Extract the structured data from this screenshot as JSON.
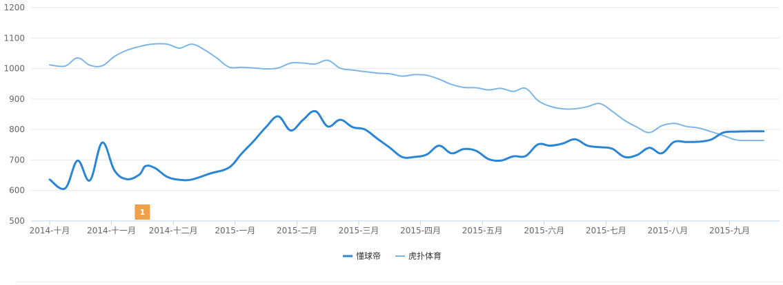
{
  "chart_data": {
    "type": "line",
    "ylim": [
      500,
      1200
    ],
    "y_ticks": [
      "1200",
      "1100",
      "1000",
      "900",
      "800",
      "700",
      "600",
      "500"
    ],
    "x_ticks": [
      "2014-十月",
      "2014-十一月",
      "2014-十二月",
      "2015-一月",
      "2015-二月",
      "2015-三月",
      "2015-四月",
      "2015-五月",
      "2015-六月",
      "2015-七月",
      "2015-八月",
      "2015-九月"
    ],
    "grid": true,
    "legend_position": "bottom-center",
    "series": [
      {
        "name": "懂球帝",
        "color": "#2a86d4",
        "x": [
          0,
          0.25,
          0.45,
          0.65,
          0.85,
          1.05,
          1.25,
          1.45,
          1.55,
          1.7,
          1.9,
          2.1,
          2.3,
          2.6,
          2.9,
          3.1,
          3.3,
          3.5,
          3.7,
          3.9,
          4.1,
          4.3,
          4.5,
          4.7,
          4.9,
          5.1,
          5.3,
          5.5,
          5.7,
          5.9,
          6.1,
          6.3,
          6.5,
          6.7,
          6.9,
          7.1,
          7.3,
          7.5,
          7.7,
          7.9,
          8.1,
          8.3,
          8.5,
          8.7,
          8.9,
          9.1,
          9.3,
          9.5,
          9.7,
          9.9,
          10.1,
          10.3,
          10.5,
          10.7,
          10.9,
          11.1,
          11.3,
          11.55
        ],
        "y": [
          636,
          607,
          698,
          633,
          757,
          665,
          637,
          652,
          680,
          674,
          645,
          635,
          636,
          656,
          675,
          720,
          762,
          808,
          843,
          797,
          832,
          860,
          810,
          832,
          808,
          800,
          770,
          741,
          710,
          710,
          718,
          747,
          722,
          736,
          730,
          703,
          698,
          712,
          713,
          751,
          747,
          754,
          768,
          747,
          742,
          737,
          710,
          716,
          740,
          722,
          759,
          759,
          760,
          767,
          790,
          793,
          794,
          794
        ]
      },
      {
        "name": "虎扑体育",
        "color": "#7cb5e6",
        "x": [
          0,
          0.25,
          0.45,
          0.65,
          0.85,
          1.05,
          1.25,
          1.45,
          1.65,
          1.9,
          2.1,
          2.3,
          2.5,
          2.7,
          2.9,
          3.1,
          3.3,
          3.5,
          3.7,
          3.9,
          4.1,
          4.3,
          4.5,
          4.7,
          4.9,
          5.1,
          5.3,
          5.5,
          5.7,
          5.9,
          6.1,
          6.3,
          6.5,
          6.7,
          6.9,
          7.1,
          7.3,
          7.5,
          7.7,
          7.9,
          8.1,
          8.3,
          8.5,
          8.7,
          8.9,
          9.1,
          9.3,
          9.5,
          9.7,
          9.9,
          10.1,
          10.3,
          10.5,
          10.7,
          10.9,
          11.1,
          11.3,
          11.55
        ],
        "y": [
          1012,
          1008,
          1035,
          1011,
          1009,
          1040,
          1060,
          1072,
          1080,
          1080,
          1067,
          1080,
          1062,
          1035,
          1005,
          1004,
          1002,
          999,
          1002,
          1018,
          1018,
          1015,
          1027,
          1001,
          995,
          990,
          985,
          983,
          975,
          980,
          978,
          965,
          948,
          938,
          937,
          930,
          935,
          925,
          935,
          895,
          876,
          868,
          868,
          875,
          885,
          860,
          830,
          808,
          790,
          812,
          820,
          810,
          805,
          793,
          780,
          766,
          764,
          764
        ]
      }
    ]
  },
  "markers": [
    {
      "label": "1",
      "x": 1.5,
      "color": "#f0a04b"
    }
  ]
}
